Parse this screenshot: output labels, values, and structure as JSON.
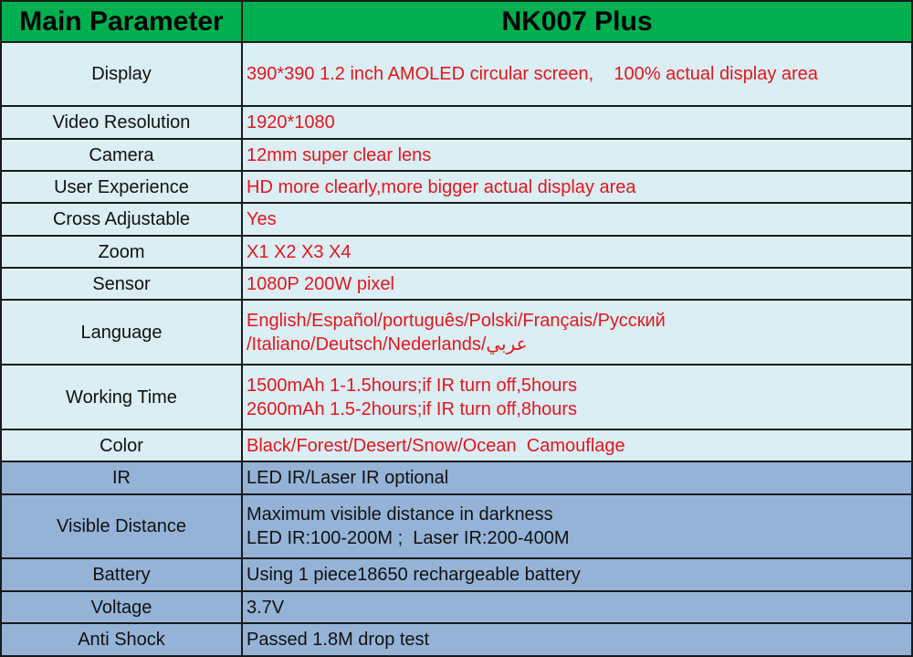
{
  "header": {
    "param_label": "Main Parameter",
    "model": "NK007 Plus"
  },
  "colors": {
    "header_bg": "#00b050",
    "light_row_bg": "#daeef3",
    "blue_row_bg": "#95b3d7",
    "value_red": "#e5161d"
  },
  "rows": [
    {
      "key": "Display",
      "lines": [
        "390*390 1.2 inch AMOLED circular screen,    100% actual display area"
      ],
      "style": "lt"
    },
    {
      "key": "Video Resolution",
      "lines": [
        "1920*1080"
      ],
      "style": "lt"
    },
    {
      "key": "Camera",
      "lines": [
        "12mm super clear lens"
      ],
      "style": "lt"
    },
    {
      "key": "User Experience",
      "lines": [
        "HD more clearly,more bigger actual display area"
      ],
      "style": "lt"
    },
    {
      "key": "Cross Adjustable",
      "lines": [
        "Yes"
      ],
      "style": "lt"
    },
    {
      "key": "Zoom",
      "lines": [
        "X1 X2 X3 X4"
      ],
      "style": "lt"
    },
    {
      "key": "Sensor",
      "lines": [
        "1080P 200W pixel"
      ],
      "style": "lt"
    },
    {
      "key": "Language",
      "lines": [
        "English/Español/português/Polski/Français/Русский",
        "/Italiano/Deutsch/Nederlands/عربي"
      ],
      "style": "lt"
    },
    {
      "key": "Working Time",
      "lines": [
        "1500mAh 1-1.5hours;if IR turn off,5hours",
        "2600mAh 1.5-2hours;if IR turn off,8hours"
      ],
      "style": "lt"
    },
    {
      "key": "Color",
      "lines": [
        "Black/Forest/Desert/Snow/Ocean  Camouflage"
      ],
      "style": "lt"
    },
    {
      "key": "IR",
      "lines": [
        "LED IR/Laser IR optional"
      ],
      "style": "bl"
    },
    {
      "key": "Visible Distance",
      "lines": [
        "Maximum visible distance in darkness",
        "LED IR:100-200M ;  Laser IR:200-400M"
      ],
      "style": "bl"
    },
    {
      "key": "Battery",
      "lines": [
        "Using 1 piece18650 rechargeable battery"
      ],
      "style": "bl"
    },
    {
      "key": "Voltage",
      "lines": [
        "3.7V"
      ],
      "style": "bl"
    },
    {
      "key": "Anti Shock",
      "lines": [
        "Passed 1.8M drop test"
      ],
      "style": "bl"
    }
  ]
}
